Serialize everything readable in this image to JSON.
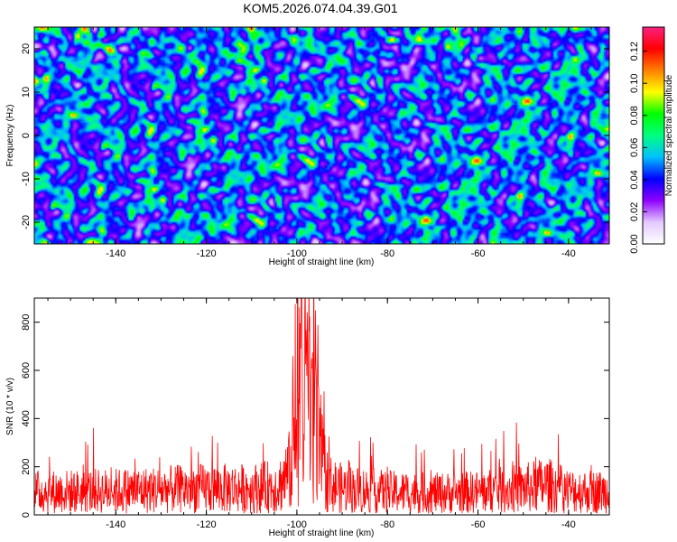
{
  "title": "KOM5.2026.074.04.39.G01",
  "chart_data": [
    {
      "type": "heatmap",
      "title": "KOM5.2026.074.04.39.G01",
      "xlabel": "Height of straight line (km)",
      "ylabel": "Frequency (Hz)",
      "xlim": [
        -158,
        -31
      ],
      "ylim": [
        -25,
        25
      ],
      "xticks": [
        -140,
        -120,
        -100,
        -80,
        -60,
        -40
      ],
      "yticks": [
        -20,
        -10,
        0,
        10,
        20
      ],
      "colorbar": {
        "label": "Normalized spectral amplitude",
        "range": [
          0,
          0.135
        ],
        "ticks": [
          "0.00",
          "0.02",
          "0.04",
          "0.06",
          "0.08",
          "0.10",
          "0.12"
        ],
        "colors": [
          "#ffffff",
          "#e3c9ff",
          "#8f00ff",
          "#0000ff",
          "#00c0ff",
          "#00ff80",
          "#00ff00",
          "#ffff00",
          "#ff8000",
          "#ff0000",
          "#ff2080"
        ]
      },
      "notes": "Noise-like field of spectral amplitude, mostly 0.02-0.06 with sparse peaks up to about 0.13"
    },
    {
      "type": "line",
      "xlabel": "Height of straight line (km)",
      "ylabel": "SNR (10 * v/v)",
      "xlim": [
        -158,
        -31
      ],
      "ylim": [
        0,
        900
      ],
      "xticks": [
        -140,
        -120,
        -100,
        -80,
        -60,
        -40
      ],
      "yticks": [
        0,
        200,
        400,
        600,
        800
      ],
      "series": [
        {
          "name": "SNR",
          "color": "#ff0000",
          "profile_x": [
            -158,
            -140,
            -120,
            -110,
            -104,
            -101,
            -99.5,
            -98,
            -96.5,
            -95,
            -93,
            -90,
            -80,
            -70,
            -60,
            -50,
            -45,
            -40,
            -31
          ],
          "profile_mean": [
            95,
            100,
            110,
            110,
            120,
            200,
            480,
            560,
            450,
            250,
            130,
            110,
            95,
            90,
            95,
            110,
            125,
            100,
            95
          ],
          "peak_value": 880,
          "peak_x": -98
        }
      ]
    }
  ]
}
